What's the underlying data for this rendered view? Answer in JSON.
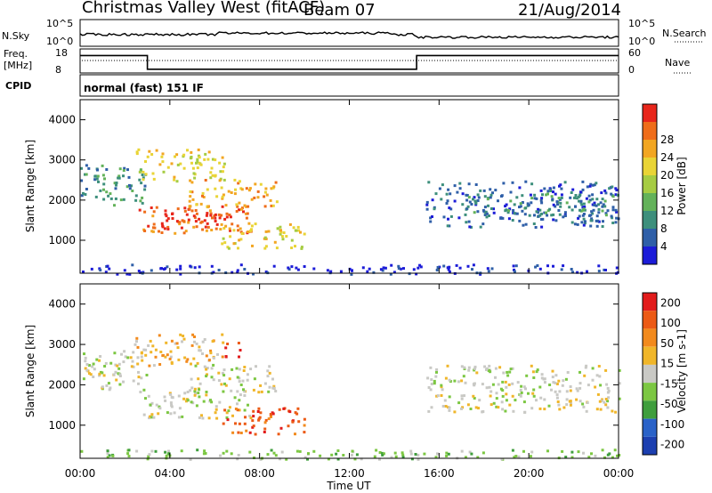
{
  "header": {
    "station": "Christmas Valley West (fitACF)",
    "beam": "Beam 07",
    "date": "21/Aug/2014"
  },
  "params": {
    "nsky_label": "N.Sky",
    "nsearch_label": "N.Search",
    "freq_label_1": "Freq.",
    "freq_label_2": "[MHz]",
    "nave_label": "Nave",
    "cpid_label": "CPID",
    "cpid_value": "normal (fast) 151 IF",
    "nsky_ticks": [
      "10^5",
      "10^0"
    ],
    "nsearch_ticks": [
      "10^5",
      "10^0"
    ],
    "freq_ticks": [
      "18",
      "8"
    ],
    "nave_ticks": [
      "60",
      "0"
    ]
  },
  "chart_data": [
    {
      "type": "heatmap",
      "panel": "power",
      "ylabel": "Slant Range [km]",
      "colorbar_label": "Power [dB]",
      "colorbar_ticks": [
        4,
        8,
        12,
        16,
        20,
        24,
        28
      ],
      "colors": [
        "#1c1cd8",
        "#2f5fa8",
        "#3d8f7c",
        "#63b25a",
        "#a6cc43",
        "#e9d436",
        "#f2a622",
        "#ef6d1a",
        "#e8261b"
      ],
      "ylim": [
        180,
        4500
      ],
      "yticks": [
        1000,
        2000,
        3000,
        4000
      ],
      "regions": [
        {
          "t0": 0.0,
          "t1": 3.0,
          "r0": 1900,
          "r1": 2900,
          "level": 2
        },
        {
          "t0": 2.6,
          "t1": 7.6,
          "r0": 1200,
          "r1": 1900,
          "level": 7
        },
        {
          "t0": 3.2,
          "t1": 6.6,
          "r0": 1300,
          "r1": 1750,
          "level": 8
        },
        {
          "t0": 2.4,
          "t1": 6.4,
          "r0": 2500,
          "r1": 3300,
          "level": 5
        },
        {
          "t0": 4.8,
          "t1": 8.8,
          "r0": 1850,
          "r1": 2550,
          "level": 6
        },
        {
          "t0": 6.2,
          "t1": 10.0,
          "r0": 800,
          "r1": 1450,
          "level": 5
        },
        {
          "t0": 15.4,
          "t1": 24.0,
          "r0": 1350,
          "r1": 2500,
          "level": 1
        },
        {
          "t0": 17.0,
          "t1": 24.0,
          "r0": 1600,
          "r1": 2200,
          "level": 2
        },
        {
          "t0": 0.0,
          "t1": 24.0,
          "r0": 180,
          "r1": 420,
          "level": 0
        }
      ]
    },
    {
      "type": "heatmap",
      "panel": "velocity",
      "ylabel": "Slant Range [km]",
      "colorbar_label": "Velocity [m s-1]",
      "colorbar_ticks": [
        200,
        100,
        50,
        15,
        -15,
        -50,
        -100,
        -200
      ],
      "colors": [
        "#1c3fb0",
        "#2a62c8",
        "#3f9e3d",
        "#7cc742",
        "#c9c9c5",
        "#f0b62a",
        "#f28a1d",
        "#ec5a15",
        "#e21b1b"
      ],
      "ylim": [
        180,
        4500
      ],
      "yticks": [
        1000,
        2000,
        3000,
        4000
      ],
      "regions": [
        {
          "t0": 0.0,
          "t1": 3.0,
          "r0": 1900,
          "r1": 2900,
          "level": 4
        },
        {
          "t0": 2.6,
          "t1": 7.6,
          "r0": 1200,
          "r1": 1900,
          "level": 4
        },
        {
          "t0": 2.4,
          "t1": 6.4,
          "r0": 2500,
          "r1": 3300,
          "level": 5
        },
        {
          "t0": 6.4,
          "t1": 7.2,
          "r0": 2700,
          "r1": 3100,
          "level": 8
        },
        {
          "t0": 4.8,
          "t1": 8.8,
          "r0": 1850,
          "r1": 2550,
          "level": 4
        },
        {
          "t0": 6.2,
          "t1": 10.0,
          "r0": 800,
          "r1": 1450,
          "level": 7
        },
        {
          "t0": 15.4,
          "t1": 24.0,
          "r0": 1350,
          "r1": 2500,
          "level": 4
        },
        {
          "t0": 0.0,
          "t1": 24.0,
          "r0": 180,
          "r1": 420,
          "level": 3
        }
      ]
    }
  ],
  "xaxis": {
    "label": "Time UT",
    "ticks": [
      "00:00",
      "04:00",
      "08:00",
      "12:00",
      "16:00",
      "20:00",
      "00:00"
    ]
  },
  "freq_trace": [
    {
      "t": 0.0,
      "v": 16.0
    },
    {
      "t": 3.0,
      "v": 16.0
    },
    {
      "t": 3.0,
      "v": 9.0
    },
    {
      "t": 15.0,
      "v": 9.0
    },
    {
      "t": 15.0,
      "v": 16.0
    },
    {
      "t": 24.0,
      "v": 16.0
    }
  ]
}
